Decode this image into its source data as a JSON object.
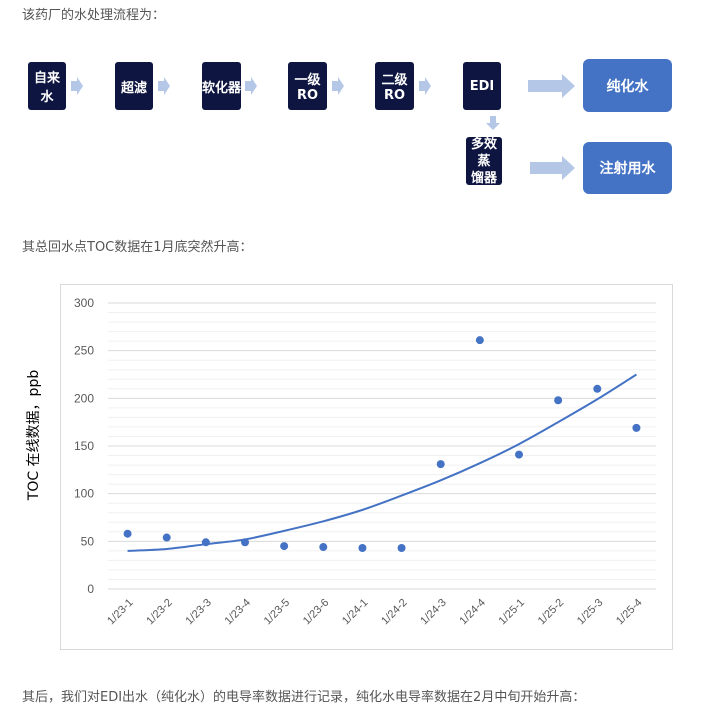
{
  "intro_text": "该药厂的水处理流程为：",
  "flow": {
    "steps": [
      "自来水",
      "超滤",
      "软化器",
      "一级RO",
      "二级RO",
      "EDI"
    ],
    "branch_step": "多效蒸\n馏器",
    "outputs": [
      "纯化水",
      "注射用水"
    ],
    "colors": {
      "step": "#0d1540",
      "output": "#4472c4",
      "arrow": "#b4c7e7"
    }
  },
  "toc_text": "其总回水点TOC数据在1月底突然升高：",
  "chart_data": {
    "type": "scatter",
    "title": "",
    "xlabel": "",
    "ylabel": "TOC 在线数据，ppb",
    "ylim": [
      0,
      300
    ],
    "yticks": [
      0,
      50,
      100,
      150,
      200,
      250,
      300
    ],
    "grid": true,
    "categories": [
      "1/23-1",
      "1/23-2",
      "1/23-3",
      "1/23-4",
      "1/23-5",
      "1/23-6",
      "1/24-1",
      "1/24-2",
      "1/24-3",
      "1/24-4",
      "1/25-1",
      "1/25-2",
      "1/25-3",
      "1/25-4"
    ],
    "values": [
      58,
      54,
      49,
      49,
      45,
      44,
      43,
      43,
      131,
      261,
      141,
      198,
      210,
      169
    ],
    "trendline": {
      "type": "polynomial",
      "values": [
        40,
        42,
        47,
        52,
        61,
        71,
        83,
        98,
        114,
        132,
        152,
        175,
        199,
        225
      ]
    },
    "colors": {
      "points": "#4472c4",
      "trend": "#4472c4"
    }
  },
  "footer_text": "其后，我们对EDI出水（纯化水）的电导率数据进行记录，纯化水电导率数据在2月中旬开始升高："
}
